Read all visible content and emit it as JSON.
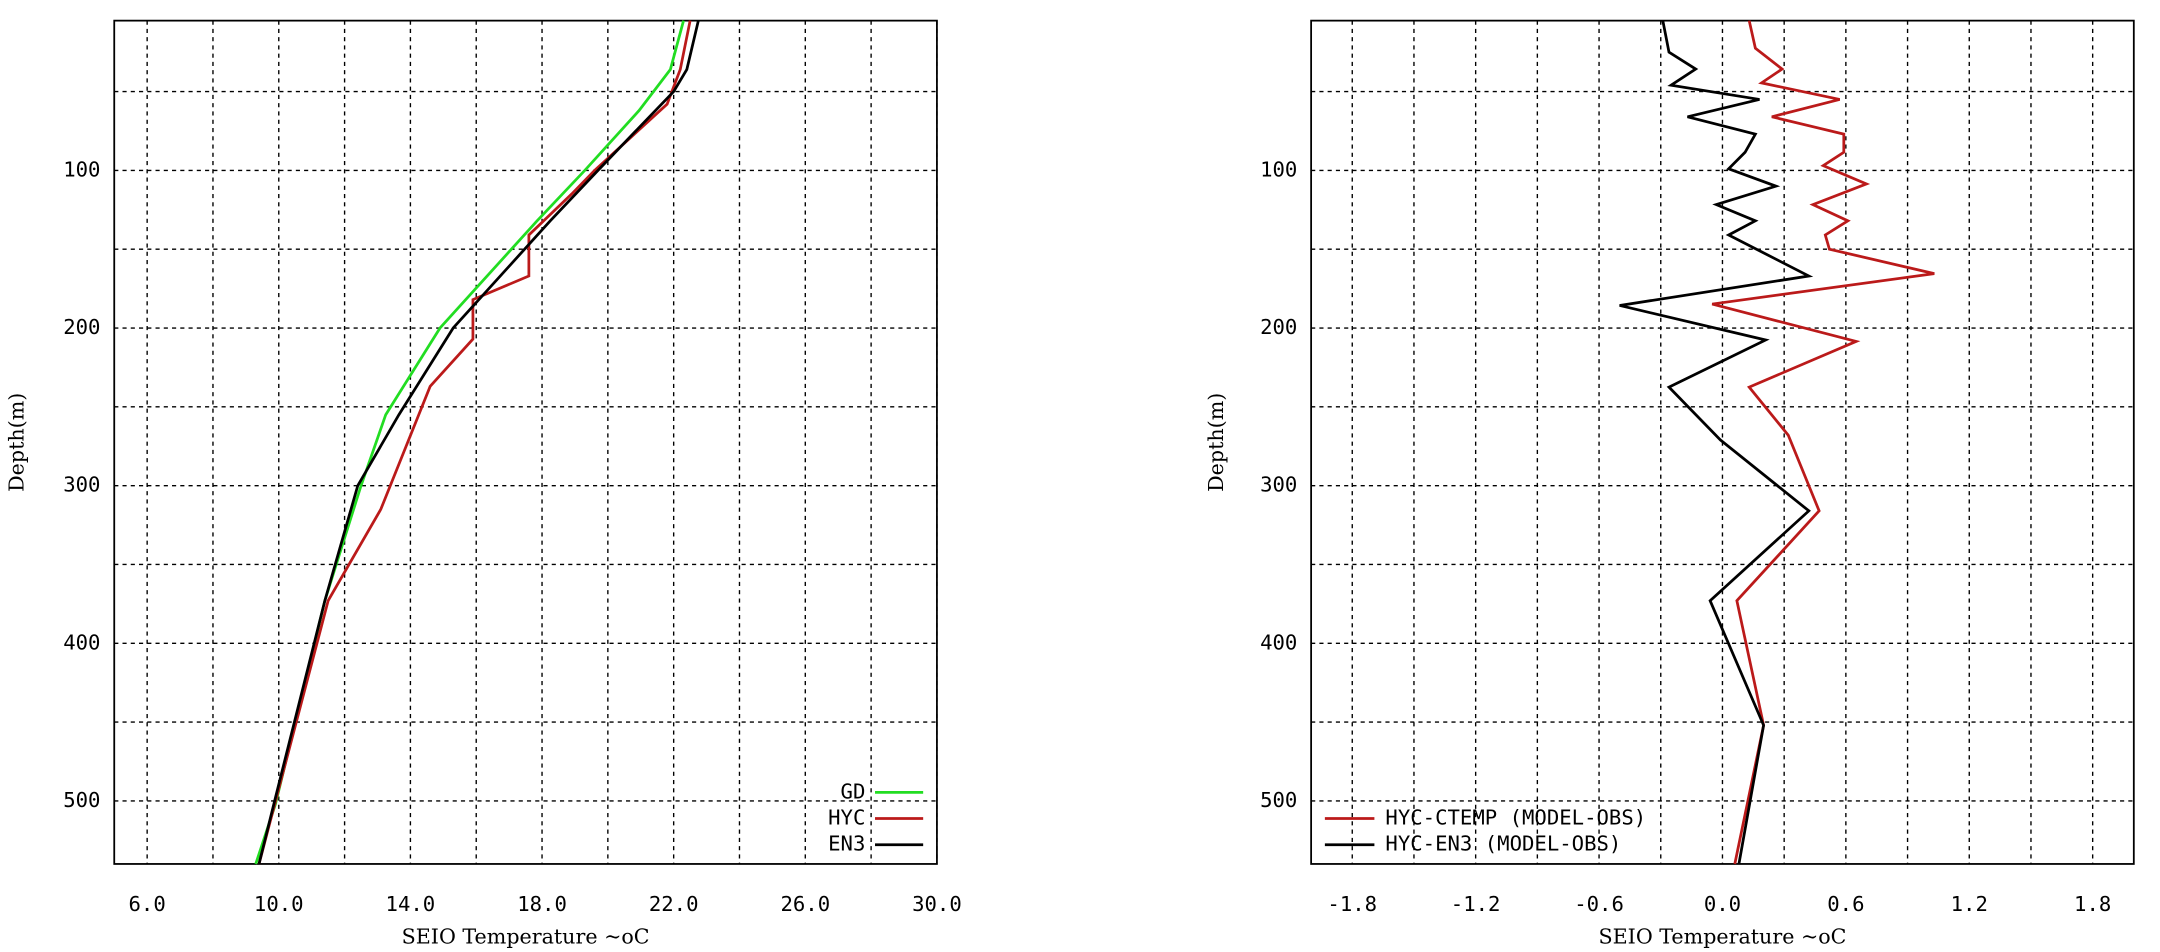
{
  "chart_data": [
    {
      "type": "line",
      "xlabel": "SEIO Temperature ~oC",
      "ylabel": "Depth(m)",
      "xlim": [
        5,
        30
      ],
      "ylim": [
        5,
        540
      ],
      "yreversed": true,
      "grid": true,
      "xticks": [
        {
          "value": 6,
          "label": "6.0"
        },
        {
          "value": 10,
          "label": "10.0"
        },
        {
          "value": 14,
          "label": "14.0"
        },
        {
          "value": 18,
          "label": "18.0"
        },
        {
          "value": 22,
          "label": "22.0"
        },
        {
          "value": 26,
          "label": "26.0"
        },
        {
          "value": 30,
          "label": "30.0"
        }
      ],
      "xminor": [
        8,
        12,
        16,
        20,
        24,
        28
      ],
      "yticks": [
        100,
        200,
        300,
        400,
        500
      ],
      "yminor": [
        50,
        150,
        250,
        350,
        450
      ],
      "legend": "bottom-right",
      "series": [
        {
          "name": "GD",
          "color": "#22dd22",
          "depth": [
            5,
            36,
            62,
            100,
            132,
            200,
            255,
            300,
            373,
            502,
            540
          ],
          "values": [
            22.3,
            21.9,
            20.95,
            19.3,
            17.85,
            14.9,
            13.25,
            12.5,
            11.4,
            9.9,
            9.3
          ]
        },
        {
          "name": "HYC",
          "color": "#bb1a1a",
          "depth": [
            5,
            36,
            58,
            100,
            115,
            141,
            167,
            182,
            207,
            237,
            315,
            373,
            540
          ],
          "values": [
            22.5,
            22.2,
            21.8,
            19.6,
            18.9,
            17.6,
            17.6,
            15.9,
            15.9,
            14.6,
            13.1,
            11.5,
            9.4
          ]
        },
        {
          "name": "EN3",
          "color": "#000000",
          "depth": [
            5,
            36,
            50,
            100,
            132,
            200,
            255,
            300,
            373,
            502,
            540
          ],
          "values": [
            22.75,
            22.4,
            22.0,
            19.7,
            18.25,
            15.3,
            13.65,
            12.4,
            11.4,
            9.85,
            9.4
          ]
        }
      ]
    },
    {
      "type": "line",
      "xlabel": "SEIO Temperature ~oC",
      "ylabel": "Depth(m)",
      "xlim": [
        -2,
        2
      ],
      "ylim": [
        5,
        540
      ],
      "yreversed": true,
      "grid": true,
      "xticks": [
        {
          "value": -1.8,
          "label": "-1.8"
        },
        {
          "value": -1.2,
          "label": "-1.2"
        },
        {
          "value": -0.6,
          "label": "-0.6"
        },
        {
          "value": 0,
          "label": "0.0"
        },
        {
          "value": 0.6,
          "label": "0.6"
        },
        {
          "value": 1.2,
          "label": "1.2"
        },
        {
          "value": 1.8,
          "label": "1.8"
        }
      ],
      "xminor": [
        -1.5,
        -0.9,
        -0.3,
        0.3,
        0.9,
        1.5
      ],
      "yticks": [
        100,
        200,
        300,
        400,
        500
      ],
      "yminor": [
        50,
        150,
        250,
        350,
        450
      ],
      "legend": "bottom-left",
      "series": [
        {
          "name": "HYC-CTEMP (MODEL-OBS)",
          "color": "#bb1a1a",
          "depth": [
            5,
            22.5,
            35.7,
            44.5,
            55,
            66,
            77,
            88.5,
            97,
            108.6,
            121.7,
            132,
            141,
            150,
            165.5,
            184.8,
            208.5,
            237.5,
            268,
            316,
            373,
            452,
            540
          ],
          "values": [
            0.13,
            0.16,
            0.29,
            0.19,
            0.57,
            0.24,
            0.59,
            0.59,
            0.49,
            0.7,
            0.44,
            0.61,
            0.5,
            0.52,
            1.03,
            -0.05,
            0.65,
            0.13,
            0.32,
            0.47,
            0.07,
            0.2,
            0.06
          ]
        },
        {
          "name": "HYC-EN3 (MODEL-OBS)",
          "color": "#000000",
          "depth": [
            5,
            25,
            35.7,
            46,
            55,
            66,
            77,
            88.5,
            99,
            110,
            121.7,
            132,
            141,
            167,
            185.7,
            207.6,
            237.5,
            271,
            316,
            373,
            452,
            540
          ],
          "values": [
            -0.29,
            -0.26,
            -0.13,
            -0.25,
            0.18,
            -0.17,
            0.16,
            0.11,
            0.03,
            0.26,
            -0.03,
            0.16,
            0.03,
            0.42,
            -0.5,
            0.21,
            -0.26,
            -0.01,
            0.42,
            -0.06,
            0.2,
            0.08
          ]
        }
      ]
    }
  ]
}
